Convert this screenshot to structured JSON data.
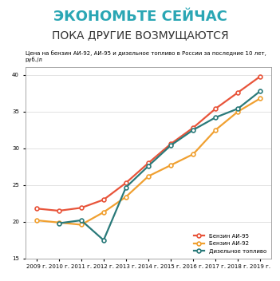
{
  "header": {
    "title": "ЭКОНОМЬТЕ СЕЙЧАС",
    "subtitle": "ПОКА ДРУГИЕ ВОЗМУЩАЮТСЯ"
  },
  "chart_data": {
    "type": "line",
    "title": "Цена на бензин АИ-92, АИ-95 и дизельное топливо в России за последние 10 лет, руб./л",
    "categories": [
      "2009 г.",
      "2010 г.",
      "2011 г.",
      "2012 г.",
      "2013 г.",
      "2014 г.",
      "2015 г.",
      "2016 г.",
      "2017 г.",
      "2018 г.",
      "2019 г."
    ],
    "series": [
      {
        "name": "Бензин АИ-95",
        "color": "#e8543a",
        "marker": "o",
        "values": [
          21.8,
          21.5,
          21.9,
          23.0,
          25.3,
          28.0,
          30.6,
          32.8,
          35.4,
          37.6,
          39.8
        ]
      },
      {
        "name": "Бензин АИ-92",
        "color": "#f0a030",
        "marker": "o",
        "values": [
          20.2,
          19.9,
          19.6,
          21.3,
          23.4,
          26.2,
          27.7,
          29.2,
          32.5,
          35.0,
          36.8
        ]
      },
      {
        "name": "Дизельное топливо",
        "color": "#2a7a7a",
        "marker": "o",
        "values": [
          null,
          19.8,
          20.2,
          17.5,
          24.7,
          27.6,
          30.4,
          32.5,
          34.2,
          35.4,
          37.8
        ]
      }
    ],
    "ylim": [
      15,
      41
    ],
    "yticks": [
      15,
      20,
      25,
      30,
      35,
      40
    ],
    "grid": true,
    "legend": "lower right"
  }
}
